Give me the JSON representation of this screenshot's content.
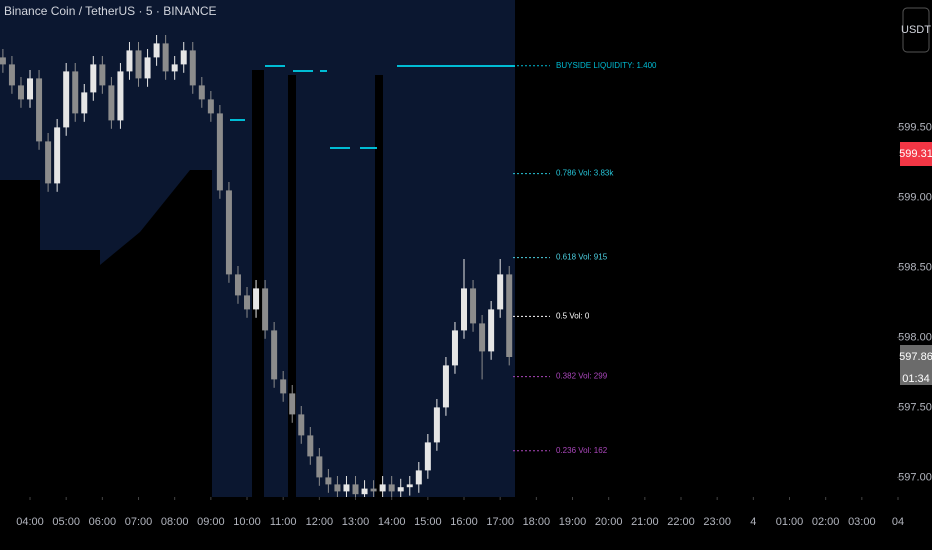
{
  "chart_data": {
    "type": "candlestick",
    "title": "Binance Coin / TetherUS · 5 · BINANCE",
    "currency": "USDT",
    "countdown": "01:34",
    "up_color": "#e6e6e6",
    "down_color": "#8c8c8c",
    "x": [
      -0.75,
      -0.5,
      -0.25,
      0,
      0.25,
      0.5,
      0.75,
      1,
      1.25,
      1.5,
      1.75,
      2,
      2.25,
      2.5,
      2.75,
      3,
      3.25,
      3.5,
      3.75,
      4,
      4.25,
      4.5,
      4.75,
      5,
      5.25,
      5.5,
      5.75,
      6,
      6.25,
      6.5,
      6.75,
      7,
      7.25,
      7.5,
      7.75,
      8,
      8.25,
      8.5,
      8.75,
      9,
      9.25,
      9.5,
      9.75,
      10,
      10.25,
      10.5,
      10.75,
      11,
      11.25,
      11.5,
      11.75,
      12,
      12.25,
      12.5,
      12.75,
      13,
      13.25
    ],
    "open": [
      600.0,
      599.95,
      599.8,
      599.7,
      599.85,
      599.4,
      599.1,
      599.5,
      599.9,
      599.6,
      599.75,
      599.95,
      599.8,
      599.55,
      599.9,
      600.05,
      599.85,
      600.0,
      600.1,
      599.9,
      599.95,
      600.05,
      599.8,
      599.7,
      599.6,
      599.05,
      598.45,
      598.3,
      598.2,
      598.35,
      598.05,
      597.7,
      597.6,
      597.45,
      597.3,
      597.15,
      597.0,
      596.95,
      596.9,
      596.95,
      596.88,
      596.92,
      596.9,
      596.95,
      596.9,
      596.93,
      596.95,
      597.05,
      597.25,
      597.5,
      597.8,
      598.05,
      598.35,
      598.1,
      597.9,
      598.2,
      598.45
    ],
    "high": [
      600.06,
      600.01,
      599.86,
      599.91,
      599.91,
      599.46,
      599.56,
      599.96,
      599.96,
      599.81,
      600.01,
      600.01,
      599.86,
      599.96,
      600.11,
      600.11,
      600.06,
      600.16,
      600.16,
      600.01,
      600.11,
      600.11,
      599.86,
      599.76,
      599.66,
      599.11,
      598.51,
      598.36,
      598.41,
      598.41,
      598.11,
      597.76,
      597.66,
      597.51,
      597.36,
      597.21,
      597.06,
      597.01,
      597.01,
      597.01,
      596.98,
      596.98,
      597.01,
      597.01,
      596.99,
      597.01,
      597.11,
      597.31,
      597.56,
      597.86,
      598.11,
      598.56,
      598.41,
      598.16,
      598.26,
      598.56,
      598.51
    ],
    "low": [
      599.89,
      599.74,
      599.64,
      599.64,
      599.34,
      599.04,
      599.04,
      599.44,
      599.54,
      599.54,
      599.69,
      599.74,
      599.49,
      599.49,
      599.84,
      599.79,
      599.79,
      599.94,
      599.84,
      599.84,
      599.89,
      599.74,
      599.64,
      599.54,
      598.99,
      598.39,
      598.24,
      598.14,
      598.14,
      597.99,
      597.64,
      597.54,
      597.39,
      597.24,
      597.09,
      596.94,
      596.89,
      596.86,
      596.86,
      596.86,
      596.86,
      596.86,
      596.86,
      596.86,
      596.86,
      596.87,
      596.89,
      596.99,
      597.19,
      597.44,
      597.74,
      597.99,
      598.04,
      597.7,
      597.84,
      598.14,
      597.8
    ],
    "close": [
      599.95,
      599.8,
      599.7,
      599.85,
      599.4,
      599.1,
      599.5,
      599.9,
      599.6,
      599.75,
      599.95,
      599.8,
      599.55,
      599.9,
      600.05,
      599.85,
      600.0,
      600.1,
      599.9,
      599.95,
      600.05,
      599.8,
      599.7,
      599.6,
      599.05,
      598.45,
      598.3,
      598.2,
      598.35,
      598.05,
      597.7,
      597.6,
      597.45,
      597.3,
      597.15,
      597.0,
      596.95,
      596.9,
      596.95,
      596.88,
      596.92,
      596.9,
      596.95,
      596.9,
      596.93,
      596.95,
      597.05,
      597.25,
      597.5,
      597.8,
      598.05,
      598.35,
      598.1,
      597.9,
      598.2,
      598.45,
      597.86
    ],
    "xlim": [
      -0.83,
      24.94
    ],
    "xticks": [
      {
        "value": 0,
        "label": "04:00"
      },
      {
        "value": 1,
        "label": "05:00"
      },
      {
        "value": 2,
        "label": "06:00"
      },
      {
        "value": 3,
        "label": "07:00"
      },
      {
        "value": 4,
        "label": "08:00"
      },
      {
        "value": 5,
        "label": "09:00"
      },
      {
        "value": 6,
        "label": "10:00"
      },
      {
        "value": 7,
        "label": "11:00"
      },
      {
        "value": 8,
        "label": "12:00"
      },
      {
        "value": 9,
        "label": "13:00"
      },
      {
        "value": 10,
        "label": "14:00"
      },
      {
        "value": 11,
        "label": "15:00"
      },
      {
        "value": 12,
        "label": "16:00"
      },
      {
        "value": 13,
        "label": "17:00"
      },
      {
        "value": 14,
        "label": "18:00"
      },
      {
        "value": 15,
        "label": "19:00"
      },
      {
        "value": 16,
        "label": "20:00"
      },
      {
        "value": 17,
        "label": "21:00"
      },
      {
        "value": 18,
        "label": "22:00"
      },
      {
        "value": 19,
        "label": "23:00"
      },
      {
        "value": 20,
        "label": "4"
      },
      {
        "value": 21,
        "label": "01:00"
      },
      {
        "value": 22,
        "label": "02:00"
      },
      {
        "value": 23,
        "label": "03:00"
      },
      {
        "value": 24,
        "label": "04"
      }
    ],
    "ylim": [
      596.86,
      600.41
    ],
    "yticks": [
      {
        "value": 597,
        "label": "597.00"
      },
      {
        "value": 597.5,
        "label": "597.50"
      },
      {
        "value": 598,
        "label": "598.00"
      },
      {
        "value": 598.5,
        "label": "598.50"
      },
      {
        "value": 599,
        "label": "599.00"
      },
      {
        "value": 599.5,
        "label": "599.50"
      }
    ],
    "levels": [
      {
        "label": "BUYSIDE LIQUIDITY: 1.400",
        "value": 599.94,
        "color": "#00bcd4"
      },
      {
        "label": "0.786 Vol: 3.83k",
        "value": 599.17,
        "color": "#26c6da"
      },
      {
        "label": "0.618 Vol: 915",
        "value": 598.57,
        "color": "#4dd0e1"
      },
      {
        "label": "0.5 Vol: 0",
        "value": 598.15,
        "color": "#ffffff"
      },
      {
        "label": "0.382 Vol: 299",
        "value": 597.72,
        "color": "#ab47bc"
      },
      {
        "label": "0.236 Vol: 162",
        "value": 597.19,
        "color": "#ab47bc"
      }
    ],
    "price_tags": [
      {
        "value": 599.31,
        "color": "#f23645"
      },
      {
        "value": 597.86,
        "color": "#6b6b6b"
      }
    ]
  }
}
